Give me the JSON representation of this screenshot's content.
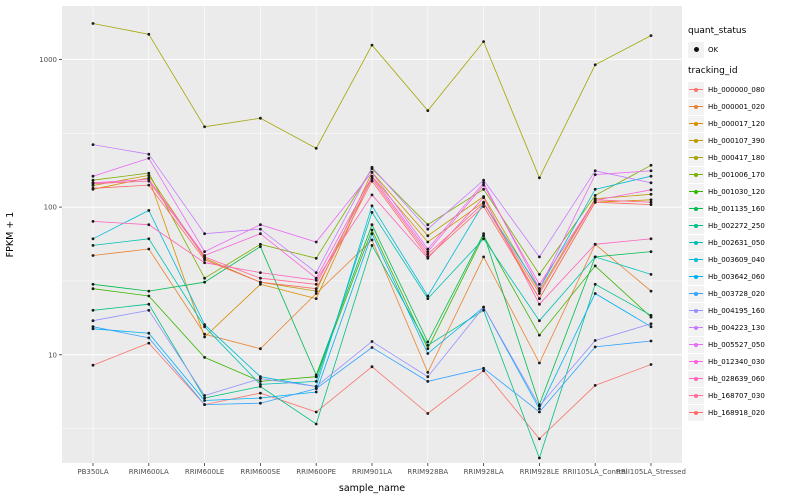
{
  "legend": {
    "quant_status_title": "quant_status",
    "quant_status_items": [
      "OK"
    ],
    "tracking_id_title": "tracking_id"
  },
  "chart_data": {
    "type": "line",
    "title": "",
    "xlabel": "sample_name",
    "ylabel": "FPKM + 1",
    "y_scale": "log10",
    "ylim": [
      1.85,
      2300
    ],
    "y_ticks": [
      10,
      100,
      1000
    ],
    "y_minor": [
      3.1623,
      31.623,
      316.23
    ],
    "grid": "on",
    "legend_position": "right",
    "panel_background": "#EBEBEB",
    "point_color": "#1a1a1a",
    "categories": [
      "PB350LA",
      "RRIM600LA",
      "RRIM600LE",
      "RRIM600SE",
      "RRIM600PE",
      "RRIM901LA",
      "RRIM928BA",
      "RRIM928LA",
      "RRIM928LE",
      "RRII105LA_Control",
      "RRII105LA_Stressed"
    ],
    "series": [
      {
        "name": "Hb_000000_080",
        "color": "#F8766D",
        "values": [
          8.5,
          12,
          4.6,
          5.5,
          4.1,
          8.3,
          4.0,
          7.8,
          2.7,
          6.2,
          8.6
        ]
      },
      {
        "name": "Hb_000001_020",
        "color": "#EA8331",
        "values": [
          47,
          52,
          13.8,
          11,
          26,
          60,
          7.6,
          46,
          8.8,
          56,
          27
        ]
      },
      {
        "name": "Hb_000017_120",
        "color": "#D89000",
        "values": [
          132,
          158,
          13.2,
          30,
          24,
          162,
          58,
          108,
          24,
          108,
          112
        ]
      },
      {
        "name": "Hb_000107_390",
        "color": "#C09B00",
        "values": [
          140,
          164,
          45,
          31,
          27,
          172,
          64,
          118,
          27,
          114,
          122
        ]
      },
      {
        "name": "Hb_000417_180",
        "color": "#A3A500",
        "values": [
          1750,
          1480,
          350,
          400,
          250,
          1250,
          450,
          1320,
          158,
          920,
          1450
        ]
      },
      {
        "name": "Hb_001006_170",
        "color": "#7CAE00",
        "values": [
          152,
          170,
          33,
          56,
          45,
          182,
          76,
          132,
          35,
          120,
          192
        ]
      },
      {
        "name": "Hb_001030_120",
        "color": "#39B600",
        "values": [
          28,
          25,
          9.6,
          6.6,
          7.1,
          70,
          11,
          64,
          13.6,
          40,
          18
        ]
      },
      {
        "name": "Hb_001135_160",
        "color": "#00BB4E",
        "values": [
          30,
          27,
          31,
          54,
          7.3,
          76,
          12.2,
          66,
          4.6,
          46,
          50
        ]
      },
      {
        "name": "Hb_002272_250",
        "color": "#00C087",
        "values": [
          20,
          22,
          5.1,
          6.1,
          3.4,
          55,
          11.6,
          20,
          2.0,
          30,
          18.5
        ]
      },
      {
        "name": "Hb_002631_050",
        "color": "#00C0B2",
        "values": [
          55,
          61,
          15.5,
          6.3,
          6.6,
          92,
          24,
          61,
          17,
          46,
          35
        ]
      },
      {
        "name": "Hb_003609_040",
        "color": "#00BCD8",
        "values": [
          61,
          95,
          16,
          7.1,
          6.1,
          102,
          25,
          106,
          28,
          132,
          162
        ]
      },
      {
        "name": "Hb_003642_060",
        "color": "#00B0F6",
        "values": [
          15,
          14,
          4.9,
          5.1,
          5.6,
          66,
          10.2,
          21,
          4.3,
          26,
          15.5
        ]
      },
      {
        "name": "Hb_003728_020",
        "color": "#35A2FF",
        "values": [
          15.5,
          13,
          4.6,
          4.7,
          5.9,
          11.2,
          6.6,
          8.1,
          4.1,
          11.3,
          12.4
        ]
      },
      {
        "name": "Hb_004195_160",
        "color": "#9590FF",
        "values": [
          17,
          20,
          5.3,
          6.9,
          6.1,
          12.3,
          7.1,
          21,
          4.5,
          12.5,
          16.2
        ]
      },
      {
        "name": "Hb_004223_130",
        "color": "#C77CFF",
        "values": [
          265,
          228,
          66,
          71,
          36,
          186,
          71,
          152,
          46,
          176,
          146
        ]
      },
      {
        "name": "Hb_005527_050",
        "color": "#E76BF3",
        "values": [
          162,
          214,
          50,
          76,
          58,
          172,
          52,
          146,
          28,
          166,
          176
        ]
      },
      {
        "name": "Hb_012340_030",
        "color": "#FA62DB",
        "values": [
          146,
          154,
          47,
          66,
          33,
          161,
          50,
          141,
          30,
          111,
          131
        ]
      },
      {
        "name": "Hb_028639_060",
        "color": "#FF62BC",
        "values": [
          80,
          76,
          42,
          36,
          32,
          121,
          45,
          116,
          22,
          56,
          61
        ]
      },
      {
        "name": "Hb_168707_030",
        "color": "#FF6A98",
        "values": [
          144,
          150,
          46,
          33,
          30,
          156,
          48,
          106,
          26,
          112,
          108
        ]
      },
      {
        "name": "Hb_168918_020",
        "color": "#FF6C67",
        "values": [
          134,
          141,
          44,
          31,
          28,
          150,
          46,
          101,
          24,
          108,
          104
        ]
      }
    ]
  }
}
